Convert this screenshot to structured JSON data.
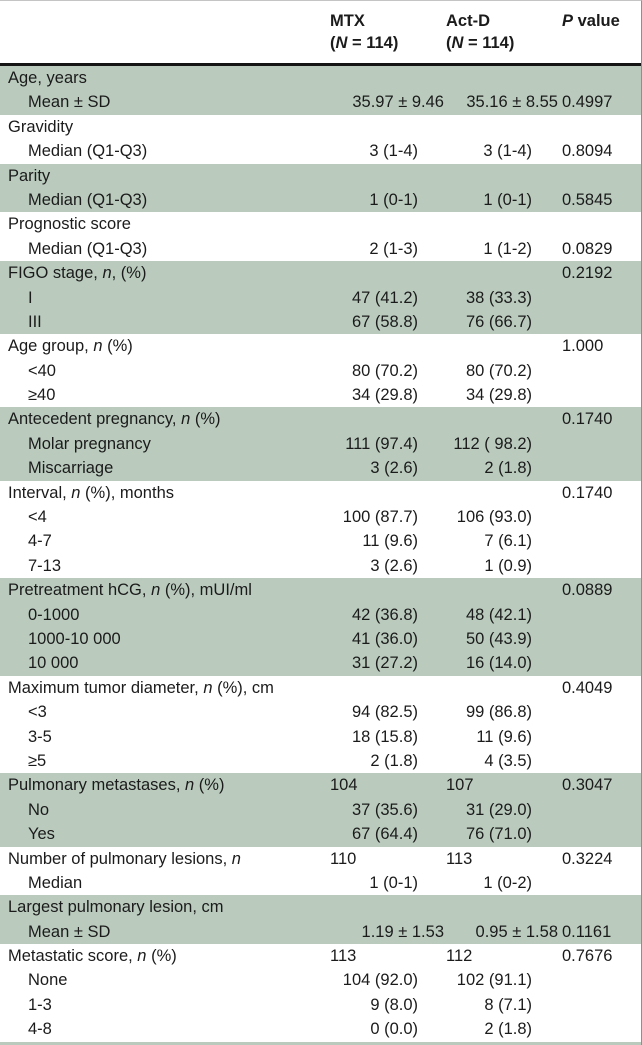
{
  "colors": {
    "band": "#bacbbe",
    "text": "#1b1b1b",
    "header_rule": "#141414"
  },
  "header": {
    "mtx": {
      "line1": "MTX",
      "line2": [
        {
          "t": "("
        },
        {
          "t": "N",
          "i": true
        },
        {
          "t": " = 114)"
        }
      ]
    },
    "actd": {
      "line1": "Act-D",
      "line2": [
        {
          "t": "("
        },
        {
          "t": "N",
          "i": true
        },
        {
          "t": " = 114)"
        }
      ]
    },
    "p": {
      "line1": [
        {
          "t": "P",
          "i": true
        },
        {
          "t": " value"
        }
      ]
    }
  },
  "table": {
    "sections": [
      {
        "shaded": true,
        "rows": [
          {
            "label": [
              {
                "t": "Age, years"
              }
            ],
            "indent": false,
            "mtx": "",
            "actd": "",
            "p": ""
          },
          {
            "label": [
              {
                "t": "Mean ± SD"
              }
            ],
            "indent": true,
            "mtx": "35.97 ± 9.46",
            "actd": "35.16 ± 8.55",
            "p": "0.4997",
            "numstyle": "wide"
          }
        ]
      },
      {
        "shaded": false,
        "rows": [
          {
            "label": [
              {
                "t": "Gravidity"
              }
            ],
            "indent": false,
            "mtx": "",
            "actd": "",
            "p": ""
          },
          {
            "label": [
              {
                "t": "Median (Q1-Q3)"
              }
            ],
            "indent": true,
            "mtx": "3 (1-4)",
            "actd": "3 (1-4)",
            "p": "0.8094"
          }
        ]
      },
      {
        "shaded": true,
        "rows": [
          {
            "label": [
              {
                "t": "Parity"
              }
            ],
            "indent": false,
            "mtx": "",
            "actd": "",
            "p": ""
          },
          {
            "label": [
              {
                "t": "Median (Q1-Q3)"
              }
            ],
            "indent": true,
            "mtx": "1 (0-1)",
            "actd": "1 (0-1)",
            "p": "0.5845"
          }
        ]
      },
      {
        "shaded": false,
        "rows": [
          {
            "label": [
              {
                "t": "Prognostic score"
              }
            ],
            "indent": false,
            "mtx": "",
            "actd": "",
            "p": ""
          },
          {
            "label": [
              {
                "t": "Median (Q1-Q3)"
              }
            ],
            "indent": true,
            "mtx": "2 (1-3)",
            "actd": "1 (1-2)",
            "p": "0.0829"
          }
        ]
      },
      {
        "shaded": true,
        "rows": [
          {
            "label": [
              {
                "t": "FIGO stage, "
              },
              {
                "t": "n",
                "i": true
              },
              {
                "t": ", (%)"
              }
            ],
            "indent": false,
            "mtx": "",
            "actd": "",
            "p": "0.2192"
          },
          {
            "label": [
              {
                "t": "I"
              }
            ],
            "indent": true,
            "mtx": "47 (41.2)",
            "actd": "38 (33.3)",
            "p": ""
          },
          {
            "label": [
              {
                "t": "III"
              }
            ],
            "indent": true,
            "mtx": "67 (58.8)",
            "actd": "76 (66.7)",
            "p": ""
          }
        ]
      },
      {
        "shaded": false,
        "rows": [
          {
            "label": [
              {
                "t": "Age group, "
              },
              {
                "t": "n",
                "i": true
              },
              {
                "t": " (%)"
              }
            ],
            "indent": false,
            "mtx": "",
            "actd": "",
            "p": "1.000"
          },
          {
            "label": [
              {
                "t": "<40"
              }
            ],
            "indent": true,
            "mtx": "80 (70.2)",
            "actd": "80 (70.2)",
            "p": ""
          },
          {
            "label": [
              {
                "t": "≥40"
              }
            ],
            "indent": true,
            "mtx": "34 (29.8)",
            "actd": "34 (29.8)",
            "p": ""
          }
        ]
      },
      {
        "shaded": true,
        "rows": [
          {
            "label": [
              {
                "t": "Antecedent pregnancy, "
              },
              {
                "t": "n",
                "i": true
              },
              {
                "t": " (%)"
              }
            ],
            "indent": false,
            "mtx": "",
            "actd": "",
            "p": "0.1740"
          },
          {
            "label": [
              {
                "t": "Molar pregnancy"
              }
            ],
            "indent": true,
            "mtx": "111 (97.4)",
            "actd": "112 ( 98.2)",
            "p": ""
          },
          {
            "label": [
              {
                "t": "Miscarriage"
              }
            ],
            "indent": true,
            "mtx": "3 (2.6)",
            "actd": "2 (1.8)",
            "p": ""
          }
        ]
      },
      {
        "shaded": false,
        "rows": [
          {
            "label": [
              {
                "t": "Interval, "
              },
              {
                "t": "n",
                "i": true
              },
              {
                "t": " (%), months"
              }
            ],
            "indent": false,
            "mtx": "",
            "actd": "",
            "p": "0.1740"
          },
          {
            "label": [
              {
                "t": "<4"
              }
            ],
            "indent": true,
            "mtx": "100 (87.7)",
            "actd": "106 (93.0)",
            "p": ""
          },
          {
            "label": [
              {
                "t": "4-7"
              }
            ],
            "indent": true,
            "mtx": "11 (9.6)",
            "actd": "7 (6.1)",
            "p": ""
          },
          {
            "label": [
              {
                "t": "7-13"
              }
            ],
            "indent": true,
            "mtx": "3 (2.6)",
            "actd": "1 (0.9)",
            "p": ""
          }
        ]
      },
      {
        "shaded": true,
        "rows": [
          {
            "label": [
              {
                "t": "Pretreatment hCG, "
              },
              {
                "t": "n",
                "i": true
              },
              {
                "t": " (%), mUI/ml"
              }
            ],
            "indent": false,
            "mtx": "",
            "actd": "",
            "p": "0.0889"
          },
          {
            "label": [
              {
                "t": "0-1000"
              }
            ],
            "indent": true,
            "mtx": "42 (36.8)",
            "actd": "48 (42.1)",
            "p": ""
          },
          {
            "label": [
              {
                "t": "1000-10 000"
              }
            ],
            "indent": true,
            "mtx": "41 (36.0)",
            "actd": "50 (43.9)",
            "p": ""
          },
          {
            "label": [
              {
                "t": "10 000"
              }
            ],
            "indent": true,
            "mtx": "31 (27.2)",
            "actd": "16 (14.0)",
            "p": ""
          }
        ]
      },
      {
        "shaded": false,
        "rows": [
          {
            "label": [
              {
                "t": "Maximum tumor diameter, "
              },
              {
                "t": "n",
                "i": true
              },
              {
                "t": " (%), cm"
              }
            ],
            "indent": false,
            "mtx": "",
            "actd": "",
            "p": "0.4049"
          },
          {
            "label": [
              {
                "t": "<3"
              }
            ],
            "indent": true,
            "mtx": "94 (82.5)",
            "actd": "99 (86.8)",
            "p": ""
          },
          {
            "label": [
              {
                "t": "3-5"
              }
            ],
            "indent": true,
            "mtx": "18 (15.8)",
            "actd": "11 (9.6)",
            "p": ""
          },
          {
            "label": [
              {
                "t": "≥5"
              }
            ],
            "indent": true,
            "mtx": "2 (1.8)",
            "actd": "4 (3.5)",
            "p": ""
          }
        ]
      },
      {
        "shaded": true,
        "rows": [
          {
            "label": [
              {
                "t": "Pulmonary metastases, "
              },
              {
                "t": "n",
                "i": true
              },
              {
                "t": " (%)"
              }
            ],
            "indent": false,
            "mtx": "104",
            "actd": "107",
            "p": "0.3047",
            "numstyle": "counts"
          },
          {
            "label": [
              {
                "t": "No"
              }
            ],
            "indent": true,
            "mtx": "37 (35.6)",
            "actd": "31 (29.0)",
            "p": ""
          },
          {
            "label": [
              {
                "t": "Yes"
              }
            ],
            "indent": true,
            "mtx": "67 (64.4)",
            "actd": "76 (71.0)",
            "p": ""
          }
        ]
      },
      {
        "shaded": false,
        "rows": [
          {
            "label": [
              {
                "t": "Number of pulmonary lesions, "
              },
              {
                "t": "n",
                "i": true
              }
            ],
            "indent": false,
            "mtx": "110",
            "actd": "113",
            "p": "0.3224",
            "numstyle": "counts"
          },
          {
            "label": [
              {
                "t": "Median"
              }
            ],
            "indent": true,
            "mtx": "1 (0-1)",
            "actd": "1 (0-2)",
            "p": ""
          }
        ]
      },
      {
        "shaded": true,
        "rows": [
          {
            "label": [
              {
                "t": "Largest pulmonary lesion, cm"
              }
            ],
            "indent": false,
            "mtx": "",
            "actd": "",
            "p": ""
          },
          {
            "label": [
              {
                "t": "Mean ± SD"
              }
            ],
            "indent": true,
            "mtx": "1.19 ± 1.53",
            "actd": "0.95 ± 1.58",
            "p": "0.1161",
            "numstyle": "wide"
          }
        ]
      },
      {
        "shaded": false,
        "rows": [
          {
            "label": [
              {
                "t": "Metastatic score, "
              },
              {
                "t": "n",
                "i": true
              },
              {
                "t": " (%)"
              }
            ],
            "indent": false,
            "mtx": "113",
            "actd": "112",
            "p": "0.7676",
            "numstyle": "counts"
          },
          {
            "label": [
              {
                "t": "None"
              }
            ],
            "indent": true,
            "mtx": "104 (92.0)",
            "actd": "102 (91.1)",
            "p": ""
          },
          {
            "label": [
              {
                "t": "1-3"
              }
            ],
            "indent": true,
            "mtx": "9 (8.0)",
            "actd": "8 (7.1)",
            "p": ""
          },
          {
            "label": [
              {
                "t": "4-8"
              }
            ],
            "indent": true,
            "mtx": "0 (0.0)",
            "actd": "2 (1.8)",
            "p": ""
          }
        ]
      }
    ]
  }
}
